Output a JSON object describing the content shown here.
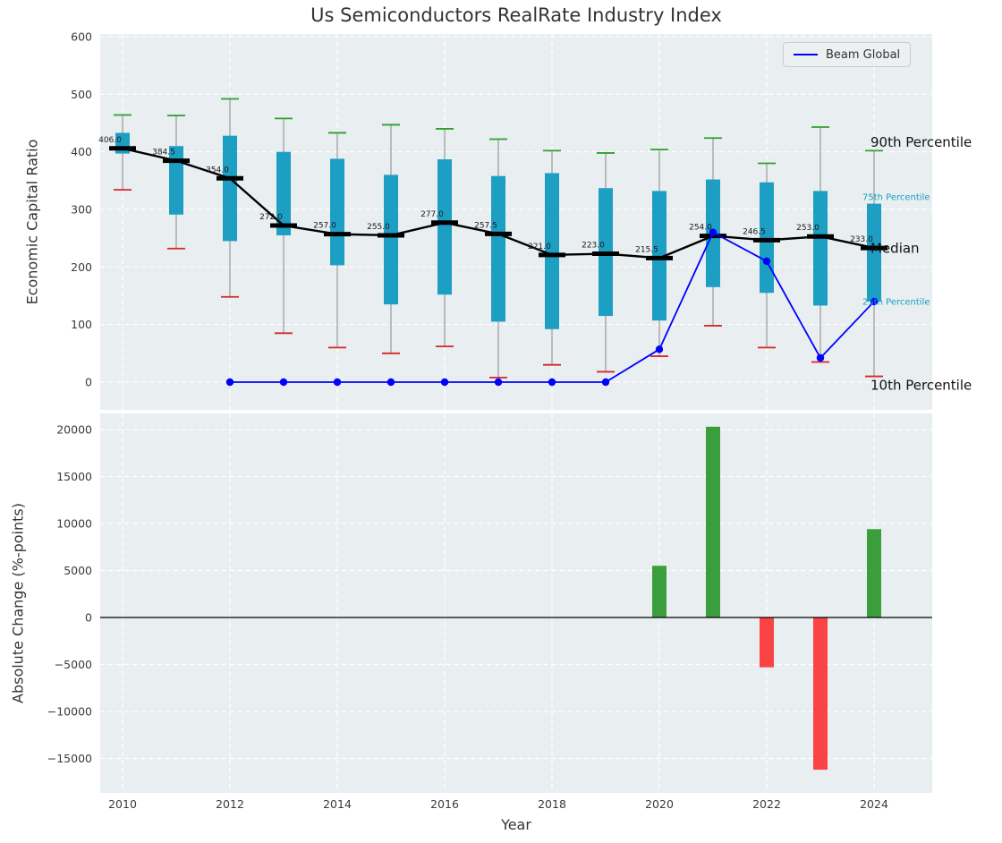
{
  "figure": {
    "background": "#ffffff",
    "axes_background": "#e9eef1",
    "grid_color": "#ffffff",
    "grid_style": "dashed"
  },
  "chart_data": [
    {
      "type": "boxplot+line",
      "title": "Us Semiconductors RealRate Industry Index",
      "ylabel": "Economic Capital Ratio",
      "ylim": [
        -48,
        605
      ],
      "yticks": [
        0,
        100,
        200,
        300,
        400,
        500,
        600
      ],
      "xticks": [
        2010,
        2012,
        2014,
        2016,
        2018,
        2020,
        2022,
        2024
      ],
      "years": [
        2010,
        2011,
        2012,
        2013,
        2014,
        2015,
        2016,
        2017,
        2018,
        2019,
        2020,
        2021,
        2022,
        2023,
        2024
      ],
      "percentile_90": [
        464,
        463,
        492,
        458,
        433,
        447,
        440,
        422,
        402,
        398,
        404,
        424,
        380,
        443,
        402
      ],
      "percentile_75": [
        433,
        410,
        428,
        400,
        388,
        360,
        387,
        358,
        363,
        337,
        332,
        352,
        347,
        332,
        310
      ],
      "median": [
        406.0,
        384.5,
        354.0,
        272.0,
        257.0,
        255.0,
        277.0,
        257.5,
        221.0,
        223.0,
        215.5,
        254.0,
        246.5,
        253.0,
        233.0
      ],
      "percentile_25": [
        397,
        291,
        245,
        255,
        203,
        135,
        152,
        105,
        92,
        115,
        107,
        165,
        155,
        133,
        140
      ],
      "percentile_10": [
        334,
        232,
        148,
        85,
        60,
        50,
        62,
        8,
        30,
        18,
        45,
        98,
        60,
        35,
        10
      ],
      "median_labels": [
        "406.0",
        "384.5",
        "354.0",
        "272.0",
        "257.0",
        "255.0",
        "277.0",
        "257.5",
        "221.0",
        "223.0",
        "215.5",
        "254.0",
        "246.5",
        "253.0",
        "233.0"
      ],
      "series": [
        {
          "name": "Beam Global",
          "color": "#0000ff",
          "x": [
            2012,
            2013,
            2014,
            2015,
            2016,
            2017,
            2018,
            2019,
            2020,
            2021,
            2022,
            2023,
            2024
          ],
          "y": [
            0,
            0,
            0,
            0,
            0,
            0,
            0,
            0,
            57,
            260,
            210,
            42,
            140
          ]
        }
      ],
      "legend": {
        "label": "Beam Global",
        "position": "upper right"
      },
      "annotations": [
        {
          "text": "90th Percentile",
          "value": 417,
          "color": "#111111",
          "size": 15
        },
        {
          "text": "75th Percentile",
          "value": 322,
          "color": "#18a1c0",
          "size": 10
        },
        {
          "text": "Median",
          "value": 233,
          "color": "#111111",
          "size": 15
        },
        {
          "text": "25th Percentile",
          "value": 140,
          "color": "#18a1c0",
          "size": 10
        },
        {
          "text": "10th Percentile",
          "value": -5,
          "color": "#111111",
          "size": 15
        }
      ],
      "colors": {
        "box": "#1d9fc4",
        "whisker": "#999999",
        "cap_top": "#2ca02c",
        "cap_bottom": "#d62728",
        "median_line": "#000000"
      }
    },
    {
      "type": "bar",
      "ylabel": "Absolute Change (%-points)",
      "xlabel": "Year",
      "ylim": [
        -18600,
        21700
      ],
      "yticks": [
        -15000,
        -10000,
        -5000,
        0,
        5000,
        10000,
        15000,
        20000
      ],
      "categories": [
        2020,
        2021,
        2022,
        2023,
        2024
      ],
      "values": [
        5500,
        20300,
        -5300,
        -16200,
        9400
      ],
      "colors": {
        "positive": "#3a9e3c",
        "negative": "#fa4343"
      }
    }
  ]
}
